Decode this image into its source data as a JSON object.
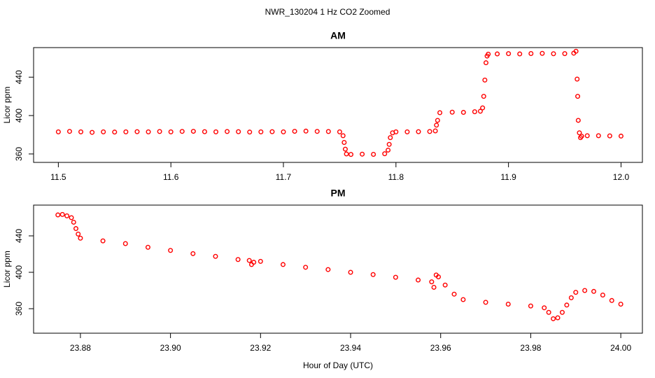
{
  "title": "NWR_130204  1 Hz CO2 Zoomed",
  "chart_data": [
    {
      "type": "scatter",
      "title": "AM",
      "ylabel": "Licor ppm",
      "color": "#ff0000",
      "marker": "open-circle",
      "xlim": [
        11.478,
        12.019
      ],
      "ylim": [
        351.2,
        470.8
      ],
      "xticks": [
        11.5,
        11.6,
        11.7,
        11.8,
        11.9,
        {
          "value": 12,
          "label": "12.0"
        }
      ],
      "yticks": [
        360,
        400,
        440
      ],
      "x": [
        11.5,
        11.51,
        11.52,
        11.53,
        11.54,
        11.55,
        11.56,
        11.57,
        11.58,
        11.59,
        11.6,
        11.61,
        11.62,
        11.63,
        11.64,
        11.65,
        11.66,
        11.67,
        11.68,
        11.69,
        11.7,
        11.71,
        11.72,
        11.73,
        11.74,
        11.75,
        11.753,
        11.754,
        11.755,
        11.756,
        11.76,
        11.77,
        11.78,
        11.79,
        11.793,
        11.794,
        11.795,
        11.797,
        11.8,
        11.81,
        11.82,
        11.83,
        11.835,
        11.836,
        11.837,
        11.839,
        11.85,
        11.86,
        11.87,
        11.875,
        11.877,
        11.878,
        11.879,
        11.88,
        11.881,
        11.882,
        11.89,
        11.9,
        11.91,
        11.92,
        11.93,
        11.94,
        11.95,
        11.958,
        11.96,
        11.961,
        11.9615,
        11.962,
        11.963,
        11.964,
        11.965,
        11.97,
        11.98,
        11.99,
        12.0
      ],
      "values": [
        383,
        383.5,
        383,
        382.5,
        383,
        382.8,
        383,
        383.2,
        383,
        383.4,
        383,
        383.5,
        383.6,
        383.2,
        383,
        383.4,
        383.2,
        382.8,
        383,
        383.2,
        383,
        383.6,
        383.8,
        383.5,
        383.4,
        383,
        379,
        372,
        365,
        360,
        359.5,
        359.8,
        359.6,
        360.2,
        364,
        370,
        377,
        382,
        383,
        383,
        383.2,
        383.4,
        384,
        390,
        395,
        403,
        403.5,
        403.3,
        404,
        404.5,
        408,
        420,
        437,
        455,
        462,
        464,
        464.2,
        464.5,
        464.2,
        464.6,
        464.8,
        464.4,
        464.5,
        465,
        467,
        438,
        420,
        395,
        382,
        377,
        378.5,
        379,
        379,
        378.8,
        378.6
      ]
    },
    {
      "type": "scatter",
      "title": "PM",
      "ylabel": "Licor ppm",
      "xlabel": "Hour of Day (UTC)",
      "color": "#ff0000",
      "marker": "open-circle",
      "xlim": [
        23.8696,
        24.0048
      ],
      "ylim": [
        333.1,
        473.8
      ],
      "xticks": [
        23.88,
        {
          "value": 23.9,
          "label": "23.90"
        },
        23.92,
        23.94,
        23.96,
        23.98,
        {
          "value": 24,
          "label": "24.00"
        }
      ],
      "yticks": [
        360,
        400,
        440
      ],
      "x": [
        23.875,
        23.876,
        23.877,
        23.878,
        23.8785,
        23.879,
        23.8795,
        23.88,
        23.885,
        23.89,
        23.895,
        23.9,
        23.905,
        23.91,
        23.915,
        23.9175,
        23.918,
        23.9185,
        23.92,
        23.925,
        23.93,
        23.935,
        23.94,
        23.945,
        23.95,
        23.955,
        23.958,
        23.9585,
        23.959,
        23.9595,
        23.961,
        23.963,
        23.965,
        23.97,
        23.975,
        23.98,
        23.983,
        23.984,
        23.985,
        23.986,
        23.987,
        23.988,
        23.989,
        23.99,
        23.992,
        23.994,
        23.996,
        23.998,
        24.0
      ],
      "values": [
        463,
        463.5,
        462,
        460,
        455,
        448,
        442,
        437.5,
        434.5,
        431.5,
        427.5,
        424,
        420.5,
        417.5,
        414,
        413,
        408.5,
        411,
        412,
        408.5,
        405.5,
        403,
        400,
        397.5,
        394.5,
        391.5,
        389.5,
        383.5,
        397,
        395,
        386,
        376,
        370,
        367,
        365,
        363,
        361,
        356,
        349,
        350,
        356,
        364,
        372,
        378,
        380,
        379,
        375,
        369,
        365
      ]
    }
  ]
}
